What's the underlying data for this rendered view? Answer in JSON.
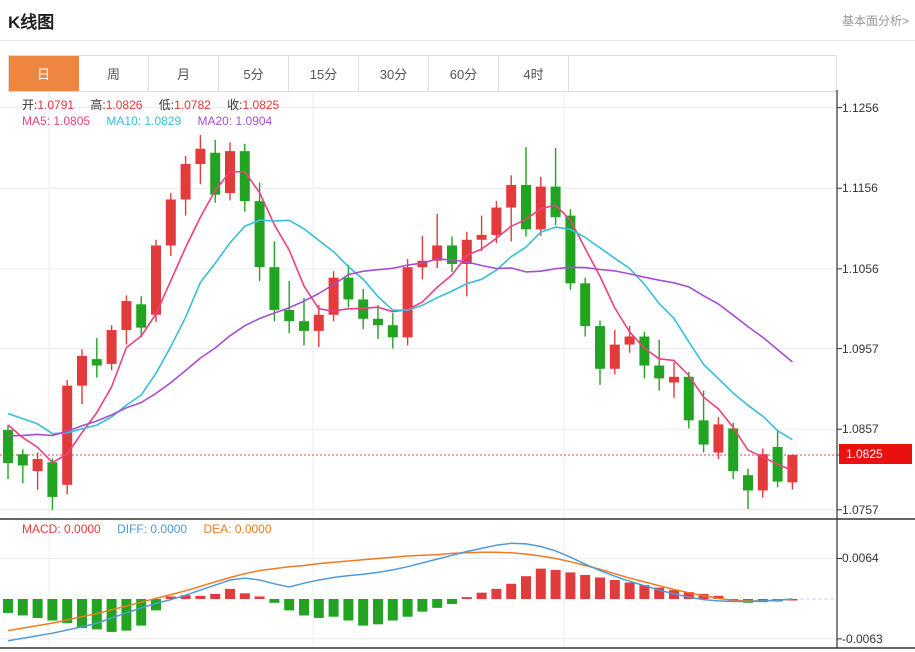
{
  "header": {
    "title": "K线图",
    "link": "基本面分析>"
  },
  "tabs": {
    "items": [
      {
        "label": "日",
        "active": true
      },
      {
        "label": "周",
        "active": false
      },
      {
        "label": "月",
        "active": false
      },
      {
        "label": "5分",
        "active": false
      },
      {
        "label": "15分",
        "active": false
      },
      {
        "label": "30分",
        "active": false
      },
      {
        "label": "60分",
        "active": false
      },
      {
        "label": "4时",
        "active": false
      }
    ]
  },
  "legend": {
    "ohlc": {
      "open_label": "开:",
      "open_value": "1.0791",
      "high_label": "高:",
      "high_value": "1.0826",
      "low_label": "低:",
      "low_value": "1.0782",
      "close_label": "收:",
      "close_value": "1.0825"
    },
    "ma": {
      "ma5_label": "MA5:",
      "ma5_value": "1.0805",
      "ma10_label": "MA10:",
      "ma10_value": "1.0829",
      "ma20_label": "MA20:",
      "ma20_value": "1.0904"
    }
  },
  "macd_legend": {
    "macd_label": "MACD:",
    "macd_value": "0.0000",
    "diff_label": "DIFF:",
    "diff_value": "0.0000",
    "dea_label": "DEA:",
    "dea_value": "0.0000"
  },
  "price_badge": "1.0825",
  "axis": {
    "main_ticks": [
      "1.1256",
      "1.1156",
      "1.1056",
      "1.0957",
      "1.0857",
      "1.0757"
    ],
    "macd_ticks": [
      "0.0064",
      "-0.0063"
    ]
  },
  "colors": {
    "up": "#e23b3b",
    "down": "#22a422",
    "ma5": "#ee3f80",
    "ma10": "#36bfd6",
    "ma20": "#a44fd0",
    "diff": "#4f9ad8",
    "dea": "#f07a20",
    "badge_bg": "#ea1010",
    "price_line": "#f0404e",
    "tab_active": "#ee8641",
    "grid": "#ececec",
    "axis_line": "#333333",
    "value_red": "#e5383c",
    "link_gray": "#999999",
    "zero_dash": "#a8cdee"
  },
  "chart_data": {
    "type": "candlestick_with_macd",
    "title": "K线图",
    "period_selected": "日",
    "last_price": 1.0825,
    "ohlc_current": {
      "open": 1.0791,
      "high": 1.0826,
      "low": 1.0782,
      "close": 1.0825
    },
    "ma_values": {
      "ma5": 1.0805,
      "ma10": 1.0829,
      "ma20": 1.0904
    },
    "y_ticks_main": [
      1.1256,
      1.1156,
      1.1056,
      1.0957,
      1.0857,
      1.0757
    ],
    "y_ticks_macd": [
      0.0064,
      -0.0063
    ],
    "ma_periods": [
      5,
      10,
      20
    ],
    "ma_seed_closes": [
      1.08,
      1.0795,
      1.08,
      1.0805,
      1.081,
      1.082,
      1.083,
      1.084,
      1.085,
      1.086,
      1.0875,
      1.0885,
      1.0895,
      1.09,
      1.0898,
      1.089,
      1.088,
      1.0868,
      1.0858
    ],
    "candles": [
      [
        1.0856,
        1.0862,
        1.0795,
        1.0815
      ],
      [
        1.0826,
        1.0832,
        1.079,
        1.0812
      ],
      [
        1.0805,
        1.0828,
        1.0782,
        1.082
      ],
      [
        1.0816,
        1.0821,
        1.0757,
        1.0773
      ],
      [
        1.0788,
        1.0918,
        1.0776,
        1.0911
      ],
      [
        1.0911,
        1.0956,
        1.0888,
        1.0948
      ],
      [
        1.0944,
        1.097,
        1.0921,
        1.0936
      ],
      [
        1.0938,
        1.0986,
        1.093,
        1.098
      ],
      [
        1.098,
        1.1023,
        1.0962,
        1.1016
      ],
      [
        1.1012,
        1.1022,
        1.0971,
        1.0983
      ],
      [
        1.0999,
        1.1092,
        1.099,
        1.1085
      ],
      [
        1.1085,
        1.115,
        1.1072,
        1.1142
      ],
      [
        1.1142,
        1.1196,
        1.1122,
        1.1186
      ],
      [
        1.1186,
        1.1222,
        1.1161,
        1.1205
      ],
      [
        1.12,
        1.1216,
        1.1138,
        1.1148
      ],
      [
        1.115,
        1.1213,
        1.1141,
        1.1202
      ],
      [
        1.1202,
        1.1211,
        1.1127,
        1.114
      ],
      [
        1.114,
        1.1163,
        1.1041,
        1.1058
      ],
      [
        1.1058,
        1.109,
        1.0991,
        1.1005
      ],
      [
        1.1005,
        1.1041,
        1.0976,
        1.0991
      ],
      [
        1.0991,
        1.102,
        1.0961,
        1.0979
      ],
      [
        1.0979,
        1.1011,
        1.0959,
        1.0999
      ],
      [
        1.0999,
        1.1053,
        1.0991,
        1.1045
      ],
      [
        1.1045,
        1.1061,
        1.1008,
        1.1018
      ],
      [
        1.1018,
        1.1031,
        1.0981,
        1.0994
      ],
      [
        1.0994,
        1.1011,
        1.0969,
        1.0986
      ],
      [
        1.0986,
        1.1001,
        1.0957,
        1.0971
      ],
      [
        1.0971,
        1.1068,
        1.0961,
        1.1058
      ],
      [
        1.1058,
        1.1097,
        1.1043,
        1.1066
      ],
      [
        1.1066,
        1.1124,
        1.1057,
        1.1085
      ],
      [
        1.1085,
        1.1096,
        1.1052,
        1.1062
      ],
      [
        1.1062,
        1.1102,
        1.1022,
        1.1092
      ],
      [
        1.1092,
        1.1122,
        1.1078,
        1.1098
      ],
      [
        1.1098,
        1.114,
        1.1088,
        1.1132
      ],
      [
        1.1132,
        1.1172,
        1.109,
        1.116
      ],
      [
        1.116,
        1.1207,
        1.1096,
        1.1105
      ],
      [
        1.1105,
        1.117,
        1.1097,
        1.1158
      ],
      [
        1.1158,
        1.1206,
        1.111,
        1.112
      ],
      [
        1.1122,
        1.113,
        1.103,
        1.1038
      ],
      [
        1.1038,
        1.1045,
        1.0972,
        1.0985
      ],
      [
        1.0985,
        1.0992,
        1.0912,
        1.0932
      ],
      [
        1.0932,
        1.098,
        1.0925,
        1.0962
      ],
      [
        1.0962,
        1.0985,
        1.0952,
        1.0972
      ],
      [
        1.0972,
        1.0978,
        1.092,
        1.0936
      ],
      [
        1.0936,
        1.0968,
        1.0905,
        1.092
      ],
      [
        1.0915,
        1.094,
        1.0896,
        1.0922
      ],
      [
        1.0922,
        1.0928,
        1.0858,
        1.0868
      ],
      [
        1.0868,
        1.0905,
        1.0828,
        1.0838
      ],
      [
        1.0828,
        1.0872,
        1.082,
        1.0863
      ],
      [
        1.0858,
        1.0865,
        1.0795,
        1.0805
      ],
      [
        1.08,
        1.0808,
        1.0758,
        1.0781
      ],
      [
        1.0781,
        1.0833,
        1.0772,
        1.0826
      ],
      [
        1.0835,
        1.0856,
        1.0785,
        1.0792
      ],
      [
        1.0791,
        1.0826,
        1.0782,
        1.0825
      ]
    ],
    "macd": {
      "hist": [
        -0.0022,
        -0.0026,
        -0.003,
        -0.0034,
        -0.0038,
        -0.0046,
        -0.0048,
        -0.0052,
        -0.005,
        -0.0042,
        -0.0018,
        0.0004,
        0.0006,
        0.0005,
        0.0008,
        0.0016,
        0.0009,
        0.0004,
        -0.0006,
        -0.0018,
        -0.0026,
        -0.003,
        -0.0028,
        -0.0034,
        -0.0042,
        -0.004,
        -0.0034,
        -0.0028,
        -0.002,
        -0.0014,
        -0.0008,
        0.0003,
        0.001,
        0.0016,
        0.0024,
        0.0036,
        0.0048,
        0.0046,
        0.0042,
        0.0038,
        0.0034,
        0.003,
        0.0026,
        0.0022,
        0.0018,
        0.0014,
        0.0011,
        0.0008,
        0.0005,
        -0.0004,
        -0.0006,
        -0.0005,
        -0.0004,
        0.0
      ],
      "diff": [
        -0.0066,
        -0.0062,
        -0.0058,
        -0.0054,
        -0.0049,
        -0.0044,
        -0.0038,
        -0.003,
        -0.0022,
        -0.0014,
        -0.0007,
        -0.0001,
        0.0006,
        0.0014,
        0.0022,
        0.003,
        0.0033,
        0.003,
        0.0024,
        0.0019,
        0.0025,
        0.003,
        0.0034,
        0.0037,
        0.0039,
        0.0042,
        0.0046,
        0.0051,
        0.0057,
        0.0063,
        0.0069,
        0.0075,
        0.008,
        0.0085,
        0.0088,
        0.0087,
        0.0083,
        0.0076,
        0.0066,
        0.0055,
        0.0045,
        0.0036,
        0.0028,
        0.0021,
        0.0014,
        0.0008,
        0.0003,
        -0.0001,
        -0.0003,
        -0.0004,
        -0.0004,
        -0.0003,
        -0.0002,
        0.0
      ],
      "dea": [
        -0.005,
        -0.0046,
        -0.0042,
        -0.0038,
        -0.0033,
        -0.0028,
        -0.0023,
        -0.0017,
        -0.0011,
        -0.0005,
        0.0001,
        0.0007,
        0.0013,
        0.002,
        0.0027,
        0.0034,
        0.004,
        0.0045,
        0.0048,
        0.0051,
        0.0053,
        0.0056,
        0.0058,
        0.006,
        0.0062,
        0.0064,
        0.0066,
        0.0068,
        0.0069,
        0.007,
        0.0072,
        0.0073,
        0.0074,
        0.0074,
        0.0073,
        0.0071,
        0.0068,
        0.0064,
        0.0059,
        0.0053,
        0.0047,
        0.004,
        0.0033,
        0.0027,
        0.0021,
        0.0015,
        0.001,
        0.0005,
        0.0001,
        -0.0002,
        -0.0003,
        -0.0003,
        -0.0002,
        0.0
      ]
    }
  }
}
